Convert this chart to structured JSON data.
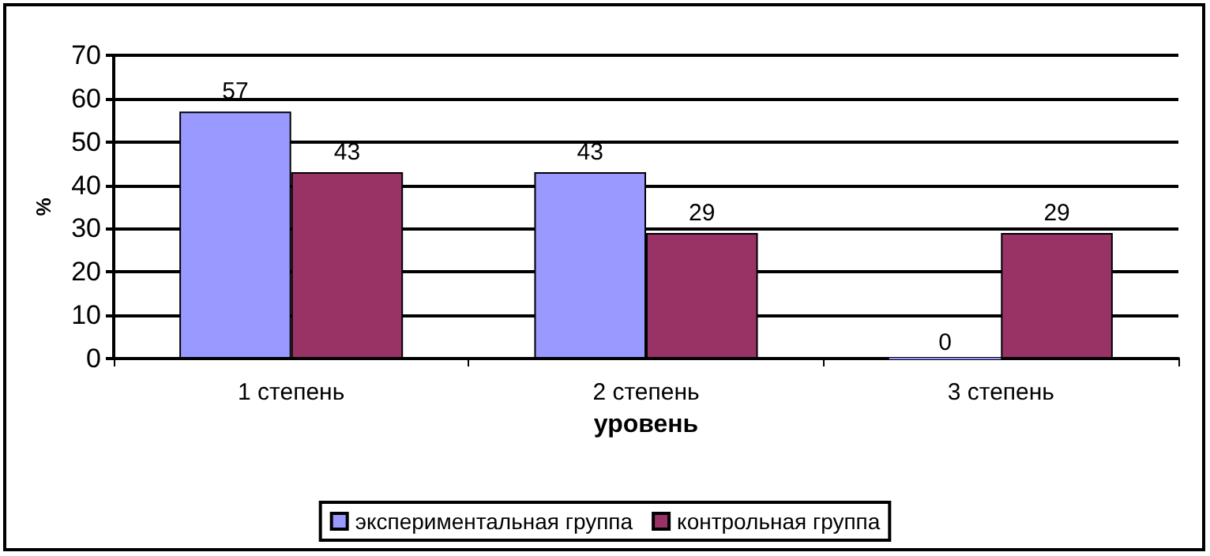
{
  "chart_data": {
    "type": "bar",
    "xlabel": "уровень",
    "ylabel": "%",
    "categories": [
      "1 степень",
      "2 степень",
      "3 степень"
    ],
    "series": [
      {
        "name": "экспериментальная группа",
        "color": "#9999ff",
        "values": [
          57,
          43,
          0
        ]
      },
      {
        "name": "контрольная группа",
        "color": "#993366",
        "values": [
          43,
          29,
          29
        ]
      }
    ],
    "ylim": [
      0,
      70
    ],
    "yticks": [
      0,
      10,
      20,
      30,
      40,
      50,
      60,
      70
    ],
    "grid": "y",
    "data_labels": true,
    "legend": "bottom"
  }
}
